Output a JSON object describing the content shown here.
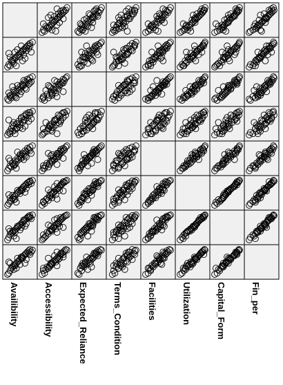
{
  "chart_data": {
    "type": "scatter",
    "subtype": "scatterplot-matrix",
    "title": "",
    "variables": [
      "Availibility",
      "Accessibility",
      "Expected_Reliance",
      "Terms_Condition",
      "Facilities",
      "Utilization",
      "Capital_Form",
      "Fin_per"
    ],
    "scale": {
      "min": 1,
      "max": 5
    },
    "grid": false,
    "legend": "none",
    "background_color": "#f0f0f0",
    "marker": "open-circle",
    "observations": [
      {
        "Availibility": 1,
        "Accessibility": 1,
        "Expected_Reliance": 1.4,
        "Terms_Condition": 1.2,
        "Facilities": 1,
        "Utilization": 1,
        "Capital_Form": 1,
        "Fin_per": 1
      },
      {
        "Availibility": 1.2,
        "Accessibility": 1.4,
        "Expected_Reliance": 1.2,
        "Terms_Condition": 1.6,
        "Facilities": 1.4,
        "Utilization": 1.3,
        "Capital_Form": 1.4,
        "Fin_per": 1.2
      },
      {
        "Availibility": 1.4,
        "Accessibility": 1.2,
        "Expected_Reliance": 1.8,
        "Terms_Condition": 1.4,
        "Facilities": 1.8,
        "Utilization": 1.6,
        "Capital_Form": 1.8,
        "Fin_per": 1.6
      },
      {
        "Availibility": 1.6,
        "Accessibility": 2.0,
        "Expected_Reliance": 1.6,
        "Terms_Condition": 2.2,
        "Facilities": 1.6,
        "Utilization": 1.8,
        "Capital_Form": 2.0,
        "Fin_per": 2.0
      },
      {
        "Availibility": 1.8,
        "Accessibility": 1.8,
        "Expected_Reliance": 2.2,
        "Terms_Condition": 1.8,
        "Facilities": 2.2,
        "Utilization": 2.1,
        "Capital_Form": 2.2,
        "Fin_per": 2.2
      },
      {
        "Availibility": 2.0,
        "Accessibility": 2.2,
        "Expected_Reliance": 2.0,
        "Terms_Condition": 2.6,
        "Facilities": 2.0,
        "Utilization": 2.3,
        "Capital_Form": 2.4,
        "Fin_per": 2.4
      },
      {
        "Availibility": 2.2,
        "Accessibility": 2.4,
        "Expected_Reliance": 2.6,
        "Terms_Condition": 2.0,
        "Facilities": 2.6,
        "Utilization": 2.5,
        "Capital_Form": 2.6,
        "Fin_per": 2.6
      },
      {
        "Availibility": 2.4,
        "Accessibility": 2.6,
        "Expected_Reliance": 2.4,
        "Terms_Condition": 3.0,
        "Facilities": 2.4,
        "Utilization": 2.8,
        "Capital_Form": 2.8,
        "Fin_per": 2.8
      },
      {
        "Availibility": 2.6,
        "Accessibility": 2.8,
        "Expected_Reliance": 3.0,
        "Terms_Condition": 2.4,
        "Facilities": 3.0,
        "Utilization": 3.0,
        "Capital_Form": 3.0,
        "Fin_per": 3.0
      },
      {
        "Availibility": 2.8,
        "Accessibility": 3.0,
        "Expected_Reliance": 2.8,
        "Terms_Condition": 3.4,
        "Facilities": 2.8,
        "Utilization": 3.2,
        "Capital_Form": 3.2,
        "Fin_per": 3.2
      },
      {
        "Availibility": 3.0,
        "Accessibility": 3.2,
        "Expected_Reliance": 3.4,
        "Terms_Condition": 2.8,
        "Facilities": 3.4,
        "Utilization": 3.4,
        "Capital_Form": 3.4,
        "Fin_per": 3.4
      },
      {
        "Availibility": 3.2,
        "Accessibility": 3.4,
        "Expected_Reliance": 3.2,
        "Terms_Condition": 3.8,
        "Facilities": 3.2,
        "Utilization": 3.6,
        "Capital_Form": 3.6,
        "Fin_per": 3.6
      },
      {
        "Availibility": 3.4,
        "Accessibility": 3.6,
        "Expected_Reliance": 3.8,
        "Terms_Condition": 3.2,
        "Facilities": 3.8,
        "Utilization": 3.8,
        "Capital_Form": 3.8,
        "Fin_per": 3.8
      },
      {
        "Availibility": 3.6,
        "Accessibility": 3.8,
        "Expected_Reliance": 3.6,
        "Terms_Condition": 4.2,
        "Facilities": 3.6,
        "Utilization": 4.0,
        "Capital_Form": 4.0,
        "Fin_per": 4.0
      },
      {
        "Availibility": 3.8,
        "Accessibility": 4.0,
        "Expected_Reliance": 4.2,
        "Terms_Condition": 3.6,
        "Facilities": 4.2,
        "Utilization": 4.2,
        "Capital_Form": 4.2,
        "Fin_per": 4.2
      },
      {
        "Availibility": 4.0,
        "Accessibility": 4.2,
        "Expected_Reliance": 4.0,
        "Terms_Condition": 4.6,
        "Facilities": 4.0,
        "Utilization": 4.4,
        "Capital_Form": 4.4,
        "Fin_per": 4.4
      },
      {
        "Availibility": 4.2,
        "Accessibility": 4.4,
        "Expected_Reliance": 4.6,
        "Terms_Condition": 4.0,
        "Facilities": 4.6,
        "Utilization": 4.6,
        "Capital_Form": 4.6,
        "Fin_per": 4.6
      },
      {
        "Availibility": 4.4,
        "Accessibility": 4.6,
        "Expected_Reliance": 4.4,
        "Terms_Condition": 4.8,
        "Facilities": 4.4,
        "Utilization": 4.7,
        "Capital_Form": 4.8,
        "Fin_per": 4.8
      },
      {
        "Availibility": 4.6,
        "Accessibility": 4.8,
        "Expected_Reliance": 4.8,
        "Terms_Condition": 4.4,
        "Facilities": 4.8,
        "Utilization": 4.9,
        "Capital_Form": 4.9,
        "Fin_per": 5.0
      },
      {
        "Availibility": 5.0,
        "Accessibility": 5.0,
        "Expected_Reliance": 5.0,
        "Terms_Condition": 5.0,
        "Facilities": 5.0,
        "Utilization": 5.0,
        "Capital_Form": 5.0,
        "Fin_per": 4.9
      },
      {
        "Availibility": 2.0,
        "Accessibility": 1.6,
        "Expected_Reliance": 2.8,
        "Terms_Condition": 3.2,
        "Facilities": 1.8,
        "Utilization": 1.9,
        "Capital_Form": 1.6,
        "Fin_per": 1.8
      },
      {
        "Availibility": 3.0,
        "Accessibility": 2.6,
        "Expected_Reliance": 2.2,
        "Terms_Condition": 2.4,
        "Facilities": 3.6,
        "Utilization": 2.9,
        "Capital_Form": 2.6,
        "Fin_per": 2.6
      },
      {
        "Availibility": 4.0,
        "Accessibility": 3.6,
        "Expected_Reliance": 3.0,
        "Terms_Condition": 4.4,
        "Facilities": 3.2,
        "Utilization": 3.7,
        "Capital_Form": 3.6,
        "Fin_per": 3.4
      },
      {
        "Availibility": 1.4,
        "Accessibility": 2.6,
        "Expected_Reliance": 2.0,
        "Terms_Condition": 1.8,
        "Facilities": 2.6,
        "Utilization": 2.2,
        "Capital_Form": 2.4,
        "Fin_per": 2.8
      },
      {
        "Availibility": 2.6,
        "Accessibility": 3.8,
        "Expected_Reliance": 3.6,
        "Terms_Condition": 3.0,
        "Facilities": 4.0,
        "Utilization": 3.4,
        "Capital_Form": 3.2,
        "Fin_per": 3.6
      },
      {
        "Availibility": 3.6,
        "Accessibility": 3.0,
        "Expected_Reliance": 4.4,
        "Terms_Condition": 3.6,
        "Facilities": 2.8,
        "Utilization": 4.0,
        "Capital_Form": 4.2,
        "Fin_per": 4.0
      },
      {
        "Availibility": 4.4,
        "Accessibility": 4.0,
        "Expected_Reliance": 3.8,
        "Terms_Condition": 3.4,
        "Facilities": 4.4,
        "Utilization": 4.3,
        "Capital_Form": 4.6,
        "Fin_per": 4.4
      },
      {
        "Availibility": 1.8,
        "Accessibility": 2.2,
        "Expected_Reliance": 3.4,
        "Terms_Condition": 2.8,
        "Facilities": 2.2,
        "Utilization": 2.6,
        "Capital_Form": 2.4,
        "Fin_per": 2.2
      },
      {
        "Availibility": 3.2,
        "Accessibility": 4.4,
        "Expected_Reliance": 2.6,
        "Terms_Condition": 4.0,
        "Facilities": 3.0,
        "Utilization": 3.3,
        "Capital_Form": 3.0,
        "Fin_per": 3.8
      },
      {
        "Availibility": 4.8,
        "Accessibility": 3.4,
        "Expected_Reliance": 4.2,
        "Terms_Condition": 3.8,
        "Facilities": 3.8,
        "Utilization": 4.5,
        "Capital_Form": 4.4,
        "Fin_per": 4.6
      },
      {
        "Availibility": 2.4,
        "Accessibility": 1.2,
        "Expected_Reliance": 1.6,
        "Terms_Condition": 2.2,
        "Facilities": 1.4,
        "Utilization": 1.5,
        "Capital_Form": 1.2,
        "Fin_per": 2.0
      },
      {
        "Availibility": 1.2,
        "Accessibility": 3.2,
        "Expected_Reliance": 2.4,
        "Terms_Condition": 3.6,
        "Facilities": 3.0,
        "Utilization": 2.7,
        "Capital_Form": 2.8,
        "Fin_per": 3.0
      },
      {
        "Availibility": 3.8,
        "Accessibility": 2.4,
        "Expected_Reliance": 3.2,
        "Terms_Condition": 2.6,
        "Facilities": 3.4,
        "Utilization": 3.1,
        "Capital_Form": 3.2,
        "Fin_per": 2.8
      },
      {
        "Availibility": 4.6,
        "Accessibility": 4.4,
        "Expected_Reliance": 4.0,
        "Terms_Condition": 4.8,
        "Facilities": 4.2,
        "Utilization": 4.8,
        "Capital_Form": 4.6,
        "Fin_per": 4.2
      },
      {
        "Availibility": 2.2,
        "Accessibility": 3.4,
        "Expected_Reliance": 1.8,
        "Terms_Condition": 1.4,
        "Facilities": 2.0,
        "Utilization": 2.0,
        "Capital_Form": 2.2,
        "Fin_per": 2.4
      },
      {
        "Availibility": 3.4,
        "Accessibility": 2.0,
        "Expected_Reliance": 3.6,
        "Terms_Condition": 2.2,
        "Facilities": 3.8,
        "Utilization": 3.5,
        "Capital_Form": 3.4,
        "Fin_per": 3.6
      }
    ]
  }
}
